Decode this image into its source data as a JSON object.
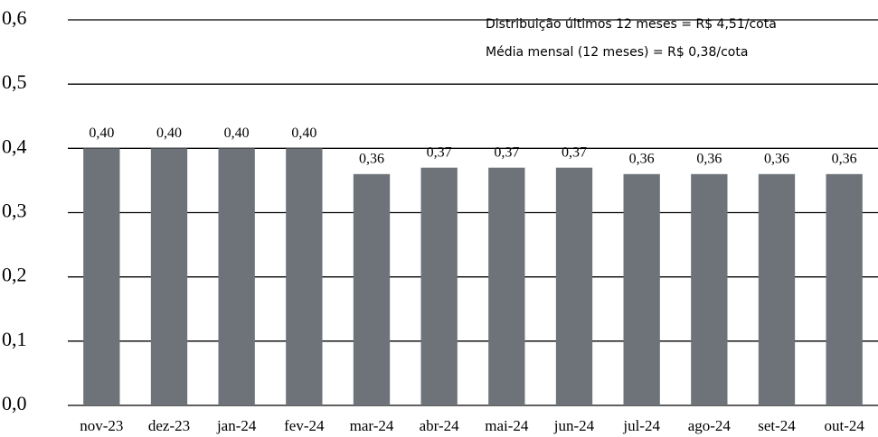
{
  "chart_data": {
    "type": "bar",
    "categories": [
      "nov-23",
      "dez-23",
      "jan-24",
      "fev-24",
      "mar-24",
      "abr-24",
      "mai-24",
      "jun-24",
      "jul-24",
      "ago-24",
      "set-24",
      "out-24"
    ],
    "values": [
      0.4,
      0.4,
      0.4,
      0.4,
      0.36,
      0.37,
      0.37,
      0.37,
      0.36,
      0.36,
      0.36,
      0.36
    ],
    "value_labels": [
      "0,40",
      "0,40",
      "0,40",
      "0,40",
      "0,36",
      "0,37",
      "0,37",
      "0,37",
      "0,36",
      "0,36",
      "0,36",
      "0,36"
    ],
    "color": "#6d7378",
    "ylim": [
      0,
      0.6
    ],
    "yticks": [
      {
        "value": 0,
        "label": "0,0"
      },
      {
        "value": 0.1,
        "label": "0,1"
      },
      {
        "value": 0.2,
        "label": "0,2"
      },
      {
        "value": 0.3,
        "label": "0,3"
      },
      {
        "value": 0.4,
        "label": "0,4"
      },
      {
        "value": 0.5,
        "label": "0,5"
      },
      {
        "value": 0.6,
        "label": "0,6"
      }
    ],
    "grid": true,
    "annotations": [
      "Distribuição últimos 12 meses = R$ 4,51/cota",
      "Média mensal (12 meses) = R$ 0,38/cota"
    ]
  }
}
